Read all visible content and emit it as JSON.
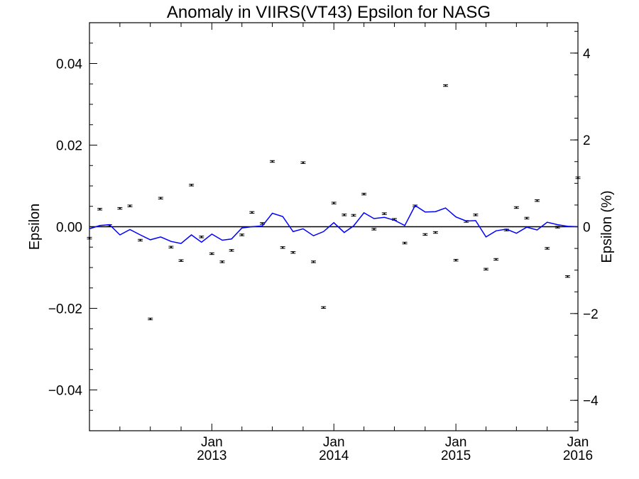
{
  "chart_data": {
    "type": "scatter",
    "title": "Anomaly in VIIRS(VT43) Epsilon for NASG",
    "ylabel": "Epsilon",
    "y2label": "Epsilon (%)",
    "ylim": [
      -0.05,
      0.05
    ],
    "y2lim": [
      -4.7,
      4.7
    ],
    "xlim": [
      "2012-01-01",
      "2016-01-01"
    ],
    "yticks": [
      "0.04",
      "0.02",
      "0.00",
      "−0.02",
      "−0.04"
    ],
    "yticks_values": [
      0.04,
      0.02,
      0.0,
      -0.02,
      -0.04
    ],
    "y2ticks": [
      "4",
      "2",
      "0",
      "−2",
      "−4"
    ],
    "y2ticks_values": [
      4,
      2,
      0,
      -2,
      -4
    ],
    "xticks": [
      {
        "date": "2013-01-01",
        "month": "Jan",
        "year": "2013"
      },
      {
        "date": "2014-01-01",
        "month": "Jan",
        "year": "2014"
      },
      {
        "date": "2015-01-01",
        "month": "Jan",
        "year": "2015"
      },
      {
        "date": "2016-01-01",
        "month": "Jan",
        "year": "2016"
      }
    ],
    "reference_line": 0,
    "series": [
      {
        "kind": "points_with_errorbars",
        "color": "#000000",
        "points": [
          [
            "2012-01-01",
            -0.0028
          ],
          [
            "2012-02-01",
            0.0043
          ],
          [
            "2012-03-01",
            0.0003
          ],
          [
            "2012-04-01",
            0.0045
          ],
          [
            "2012-05-01",
            0.0051
          ],
          [
            "2012-06-01",
            -0.0033
          ],
          [
            "2012-07-01",
            -0.0226
          ],
          [
            "2012-08-01",
            0.007
          ],
          [
            "2012-09-01",
            -0.005
          ],
          [
            "2012-10-01",
            -0.0083
          ],
          [
            "2012-11-01",
            0.0102
          ],
          [
            "2012-12-01",
            -0.0025
          ],
          [
            "2013-01-01",
            -0.0066
          ],
          [
            "2013-02-01",
            -0.0086
          ],
          [
            "2013-03-01",
            -0.0058
          ],
          [
            "2013-04-01",
            -0.002
          ],
          [
            "2013-05-01",
            0.0035
          ],
          [
            "2013-06-01",
            0.0008
          ],
          [
            "2013-07-01",
            0.016
          ],
          [
            "2013-08-01",
            -0.0051
          ],
          [
            "2013-09-01",
            -0.0063
          ],
          [
            "2013-10-01",
            0.0157
          ],
          [
            "2013-11-01",
            -0.0086
          ],
          [
            "2013-12-01",
            -0.0198
          ],
          [
            "2014-01-01",
            0.0058
          ],
          [
            "2014-02-01",
            0.0029
          ],
          [
            "2014-03-01",
            0.0028
          ],
          [
            "2014-04-01",
            0.008
          ],
          [
            "2014-05-01",
            -0.0006
          ],
          [
            "2014-06-01",
            0.0032
          ],
          [
            "2014-07-01",
            0.0018
          ],
          [
            "2014-08-01",
            -0.004
          ],
          [
            "2014-09-01",
            0.0051
          ],
          [
            "2014-10-01",
            -0.0019
          ],
          [
            "2014-11-01",
            -0.0014
          ],
          [
            "2014-12-01",
            0.0346
          ],
          [
            "2015-01-01",
            -0.0082
          ],
          [
            "2015-02-01",
            0.0013
          ],
          [
            "2015-03-01",
            0.0029
          ],
          [
            "2015-04-01",
            -0.0104
          ],
          [
            "2015-05-01",
            -0.008
          ],
          [
            "2015-06-01",
            -0.0008
          ],
          [
            "2015-07-01",
            0.0047
          ],
          [
            "2015-08-01",
            0.0021
          ],
          [
            "2015-09-01",
            0.0064
          ],
          [
            "2015-10-01",
            -0.0053
          ],
          [
            "2015-11-01",
            -0.0001
          ],
          [
            "2015-12-01",
            -0.0122
          ],
          [
            "2016-01-01",
            0.012
          ]
        ]
      },
      {
        "kind": "line",
        "color": "#0000ff",
        "points": [
          [
            "2012-01-01",
            -0.0005
          ],
          [
            "2012-02-01",
            0.0003
          ],
          [
            "2012-03-01",
            0.0005
          ],
          [
            "2012-04-01",
            -0.002
          ],
          [
            "2012-05-01",
            -0.0007
          ],
          [
            "2012-06-01",
            -0.002
          ],
          [
            "2012-07-01",
            -0.0032
          ],
          [
            "2012-08-01",
            -0.0025
          ],
          [
            "2012-09-01",
            -0.0036
          ],
          [
            "2012-10-01",
            -0.0041
          ],
          [
            "2012-11-01",
            -0.002
          ],
          [
            "2012-12-01",
            -0.0038
          ],
          [
            "2013-01-01",
            -0.0018
          ],
          [
            "2013-02-01",
            -0.0033
          ],
          [
            "2013-03-01",
            -0.003
          ],
          [
            "2013-04-01",
            -0.0003
          ],
          [
            "2013-05-01",
            0.0
          ],
          [
            "2013-06-01",
            0.0002
          ],
          [
            "2013-07-01",
            0.0033
          ],
          [
            "2013-08-01",
            0.0025
          ],
          [
            "2013-09-01",
            -0.0012
          ],
          [
            "2013-10-01",
            -0.0005
          ],
          [
            "2013-11-01",
            -0.0022
          ],
          [
            "2013-12-01",
            -0.0012
          ],
          [
            "2014-01-01",
            0.001
          ],
          [
            "2014-02-01",
            -0.0014
          ],
          [
            "2014-03-01",
            0.0002
          ],
          [
            "2014-04-01",
            0.0034
          ],
          [
            "2014-05-01",
            0.002
          ],
          [
            "2014-06-01",
            0.0023
          ],
          [
            "2014-07-01",
            0.0016
          ],
          [
            "2014-08-01",
            0.0003
          ],
          [
            "2014-09-01",
            0.0052
          ],
          [
            "2014-10-01",
            0.0036
          ],
          [
            "2014-11-01",
            0.0037
          ],
          [
            "2014-12-01",
            0.0046
          ],
          [
            "2015-01-01",
            0.0024
          ],
          [
            "2015-02-01",
            0.0014
          ],
          [
            "2015-03-01",
            0.0015
          ],
          [
            "2015-04-01",
            -0.0025
          ],
          [
            "2015-05-01",
            -0.001
          ],
          [
            "2015-06-01",
            -0.0006
          ],
          [
            "2015-07-01",
            -0.0016
          ],
          [
            "2015-08-01",
            -0.0001
          ],
          [
            "2015-09-01",
            -0.0008
          ],
          [
            "2015-10-01",
            0.0011
          ],
          [
            "2015-11-01",
            0.0005
          ],
          [
            "2015-12-01",
            0.0001
          ],
          [
            "2016-01-01",
            0.0
          ]
        ]
      }
    ]
  }
}
